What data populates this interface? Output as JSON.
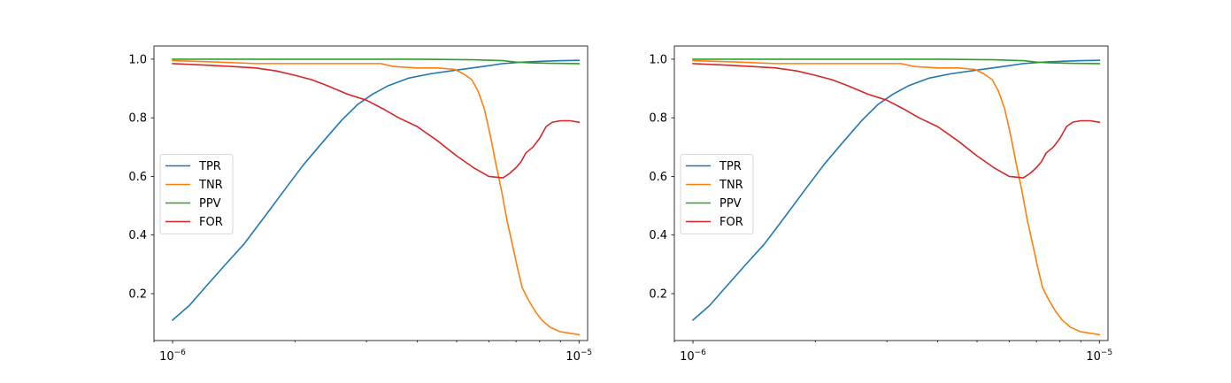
{
  "chart_data": [
    {
      "type": "line",
      "xscale": "log",
      "xlim": [
        9e-07,
        1.05e-05
      ],
      "ylim": [
        0.04,
        1.045
      ],
      "x_ticks": [
        {
          "value": 1e-06,
          "base": "10",
          "exp": "−6"
        },
        {
          "value": 1e-05,
          "base": "10",
          "exp": "−5"
        }
      ],
      "y_ticks": [
        {
          "value": 0.2,
          "label": "0.2"
        },
        {
          "value": 0.4,
          "label": "0.4"
        },
        {
          "value": 0.6,
          "label": "0.6"
        },
        {
          "value": 0.8,
          "label": "0.8"
        },
        {
          "value": 1.0,
          "label": "1.0"
        }
      ],
      "legend_position": "center-left",
      "series": [
        {
          "name": "TPR",
          "color": "#1f77b4",
          "x": [
            1e-06,
            1.1e-06,
            1.2e-06,
            1.35e-06,
            1.5e-06,
            1.7e-06,
            1.9e-06,
            2.1e-06,
            2.35e-06,
            2.6e-06,
            2.85e-06,
            3.1e-06,
            3.4e-06,
            3.8e-06,
            4.3e-06,
            5e-06,
            5.8e-06,
            6.5e-06,
            7.3e-06,
            8.2e-06,
            9e-06,
            1e-05
          ],
          "y": [
            0.11,
            0.16,
            0.22,
            0.3,
            0.37,
            0.47,
            0.56,
            0.64,
            0.72,
            0.79,
            0.845,
            0.88,
            0.91,
            0.935,
            0.95,
            0.963,
            0.975,
            0.985,
            0.99,
            0.993,
            0.995,
            0.996
          ]
        },
        {
          "name": "TNR",
          "color": "#ff7f0e",
          "x": [
            1e-06,
            1.3e-06,
            1.6e-06,
            2e-06,
            2.5e-06,
            3e-06,
            3.25e-06,
            3.5e-06,
            4e-06,
            4.5e-06,
            4.95e-06,
            5.2e-06,
            5.45e-06,
            5.65e-06,
            5.85e-06,
            6.05e-06,
            6.25e-06,
            6.45e-06,
            6.65e-06,
            6.85e-06,
            7.05e-06,
            7.25e-06,
            7.5e-06,
            7.8e-06,
            8.1e-06,
            8.5e-06,
            9e-06,
            9.5e-06,
            1e-05
          ],
          "y": [
            0.995,
            0.99,
            0.985,
            0.985,
            0.985,
            0.985,
            0.985,
            0.975,
            0.97,
            0.97,
            0.965,
            0.95,
            0.93,
            0.89,
            0.83,
            0.74,
            0.64,
            0.55,
            0.45,
            0.37,
            0.29,
            0.22,
            0.18,
            0.14,
            0.11,
            0.085,
            0.07,
            0.065,
            0.06
          ]
        },
        {
          "name": "PPV",
          "color": "#2ca02c",
          "x": [
            1e-06,
            2e-06,
            4e-06,
            5.5e-06,
            6.5e-06,
            7e-06,
            7.5e-06,
            8.5e-06,
            1e-05
          ],
          "y": [
            1.0,
            1.0,
            1.0,
            0.998,
            0.995,
            0.99,
            0.988,
            0.986,
            0.985
          ]
        },
        {
          "name": "FOR",
          "color": "#d62728",
          "x": [
            1e-06,
            1.2e-06,
            1.4e-06,
            1.6e-06,
            1.8e-06,
            2e-06,
            2.2e-06,
            2.4e-06,
            2.7e-06,
            3e-06,
            3.3e-06,
            3.6e-06,
            4e-06,
            4.5e-06,
            5e-06,
            5.5e-06,
            6e-06,
            6.5e-06,
            6.75e-06,
            7e-06,
            7.2e-06,
            7.4e-06,
            7.7e-06,
            8e-06,
            8.3e-06,
            8.6e-06,
            9e-06,
            9.5e-06,
            1e-05
          ],
          "y": [
            0.985,
            0.98,
            0.975,
            0.97,
            0.96,
            0.945,
            0.93,
            0.91,
            0.88,
            0.86,
            0.83,
            0.8,
            0.77,
            0.72,
            0.67,
            0.63,
            0.6,
            0.595,
            0.61,
            0.63,
            0.65,
            0.68,
            0.7,
            0.73,
            0.77,
            0.785,
            0.79,
            0.79,
            0.785
          ]
        }
      ]
    },
    {
      "type": "line",
      "xscale": "log",
      "xlim": [
        9e-07,
        1.05e-05
      ],
      "ylim": [
        0.04,
        1.045
      ],
      "x_ticks": [
        {
          "value": 1e-06,
          "base": "10",
          "exp": "−6"
        },
        {
          "value": 1e-05,
          "base": "10",
          "exp": "−5"
        }
      ],
      "y_ticks": [
        {
          "value": 0.2,
          "label": "0.2"
        },
        {
          "value": 0.4,
          "label": "0.4"
        },
        {
          "value": 0.6,
          "label": "0.6"
        },
        {
          "value": 0.8,
          "label": "0.8"
        },
        {
          "value": 1.0,
          "label": "1.0"
        }
      ],
      "legend_position": "center-left",
      "series": [
        {
          "name": "TPR",
          "color": "#1f77b4",
          "x": [
            1e-06,
            1.1e-06,
            1.2e-06,
            1.35e-06,
            1.5e-06,
            1.7e-06,
            1.9e-06,
            2.1e-06,
            2.35e-06,
            2.6e-06,
            2.85e-06,
            3.1e-06,
            3.4e-06,
            3.8e-06,
            4.3e-06,
            5e-06,
            5.8e-06,
            6.5e-06,
            7.3e-06,
            8.2e-06,
            9e-06,
            1e-05
          ],
          "y": [
            0.11,
            0.16,
            0.22,
            0.3,
            0.37,
            0.47,
            0.56,
            0.64,
            0.72,
            0.79,
            0.845,
            0.88,
            0.91,
            0.935,
            0.95,
            0.963,
            0.975,
            0.985,
            0.99,
            0.993,
            0.995,
            0.996
          ]
        },
        {
          "name": "TNR",
          "color": "#ff7f0e",
          "x": [
            1e-06,
            1.3e-06,
            1.6e-06,
            2e-06,
            2.5e-06,
            3e-06,
            3.25e-06,
            3.5e-06,
            4e-06,
            4.5e-06,
            4.95e-06,
            5.2e-06,
            5.45e-06,
            5.65e-06,
            5.85e-06,
            6.05e-06,
            6.25e-06,
            6.45e-06,
            6.65e-06,
            6.85e-06,
            7.05e-06,
            7.25e-06,
            7.5e-06,
            7.8e-06,
            8.1e-06,
            8.5e-06,
            9e-06,
            9.5e-06,
            1e-05
          ],
          "y": [
            0.995,
            0.99,
            0.985,
            0.985,
            0.985,
            0.985,
            0.985,
            0.975,
            0.97,
            0.97,
            0.965,
            0.95,
            0.93,
            0.89,
            0.83,
            0.74,
            0.64,
            0.55,
            0.45,
            0.37,
            0.29,
            0.22,
            0.18,
            0.14,
            0.11,
            0.085,
            0.07,
            0.065,
            0.06
          ]
        },
        {
          "name": "PPV",
          "color": "#2ca02c",
          "x": [
            1e-06,
            2e-06,
            4e-06,
            5.5e-06,
            6.5e-06,
            7e-06,
            7.5e-06,
            8.5e-06,
            1e-05
          ],
          "y": [
            1.0,
            1.0,
            1.0,
            0.998,
            0.995,
            0.99,
            0.988,
            0.986,
            0.985
          ]
        },
        {
          "name": "FOR",
          "color": "#d62728",
          "x": [
            1e-06,
            1.2e-06,
            1.4e-06,
            1.6e-06,
            1.8e-06,
            2e-06,
            2.2e-06,
            2.4e-06,
            2.7e-06,
            3e-06,
            3.3e-06,
            3.6e-06,
            4e-06,
            4.5e-06,
            5e-06,
            5.5e-06,
            6e-06,
            6.5e-06,
            6.75e-06,
            7e-06,
            7.2e-06,
            7.4e-06,
            7.7e-06,
            8e-06,
            8.3e-06,
            8.6e-06,
            9e-06,
            9.5e-06,
            1e-05
          ],
          "y": [
            0.985,
            0.98,
            0.975,
            0.97,
            0.96,
            0.945,
            0.93,
            0.91,
            0.88,
            0.86,
            0.83,
            0.8,
            0.77,
            0.72,
            0.67,
            0.63,
            0.6,
            0.595,
            0.61,
            0.63,
            0.65,
            0.68,
            0.7,
            0.73,
            0.77,
            0.785,
            0.79,
            0.79,
            0.785
          ]
        }
      ]
    }
  ]
}
